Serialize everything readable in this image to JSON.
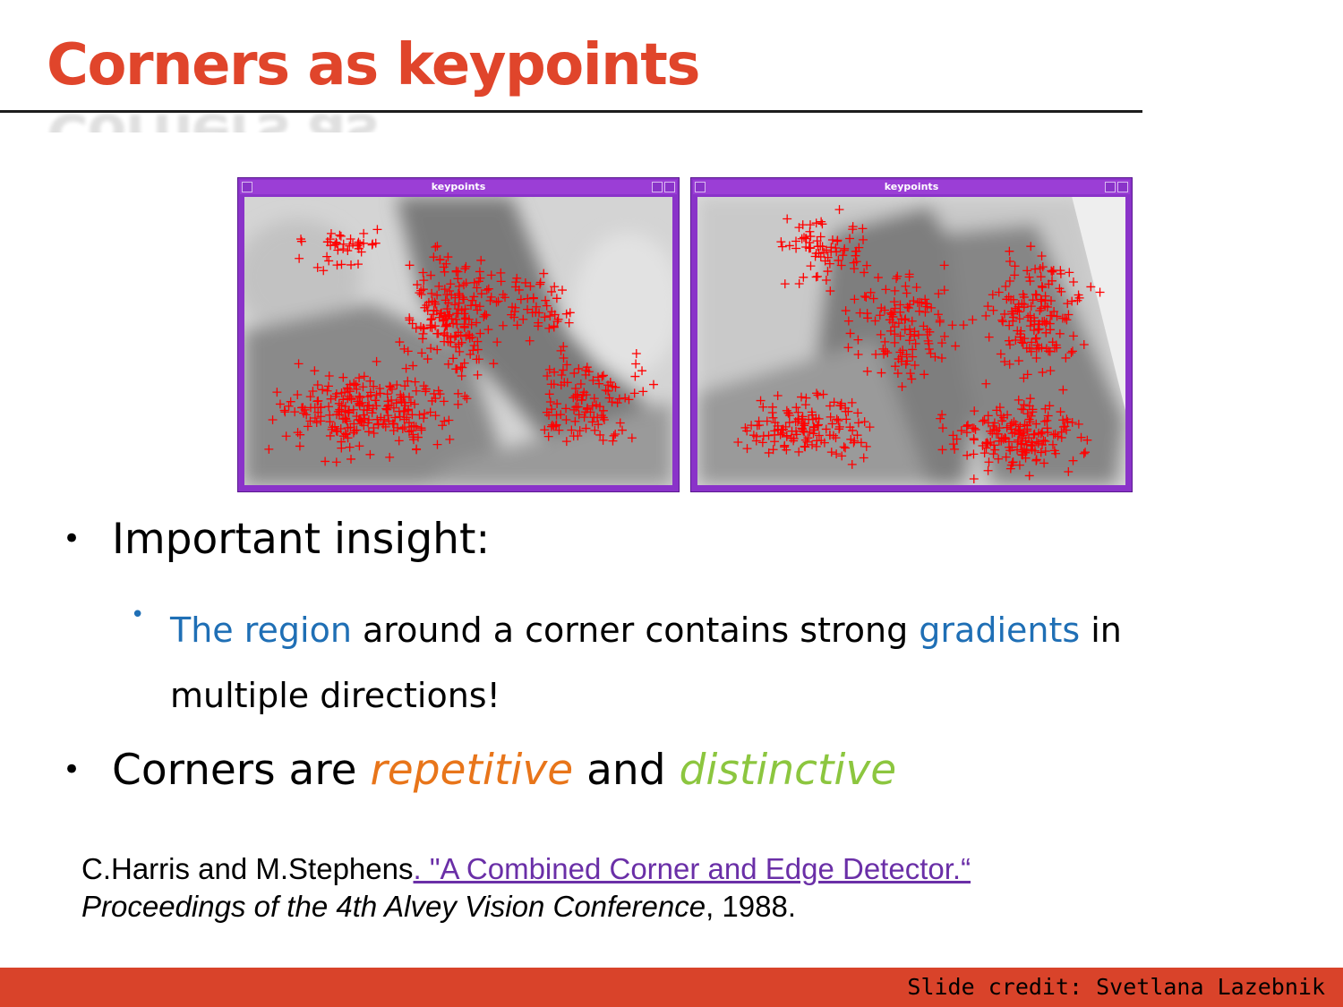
{
  "slide": {
    "title": "Corners as keypoints",
    "title_color": "#e0452b"
  },
  "figures": [
    {
      "window_title": "keypoints",
      "marker": "+",
      "marker_color": "#ff0000"
    },
    {
      "window_title": "keypoints",
      "marker": "+",
      "marker_color": "#ff0000"
    }
  ],
  "bullets": {
    "insight": "Important insight:",
    "sub_part1": "The region",
    "sub_part2": " around a corner contains strong ",
    "sub_part3": "gradients",
    "sub_part4": " in multiple directions!",
    "corners_part1": "Corners are ",
    "corners_part2": "repetitive",
    "corners_part3": " and ",
    "corners_part4": "distinctive"
  },
  "citation": {
    "authors": "C.Harris and M.Stephens",
    "link_text": ". \"A Combined Corner and Edge Detector.“",
    "venue": "Proceedings of the 4th Alvey Vision Conference",
    "year_suffix": ", 1988."
  },
  "footer": {
    "credit": "Slide credit: Svetlana Lazebnik",
    "bar_color": "#d9432a"
  }
}
